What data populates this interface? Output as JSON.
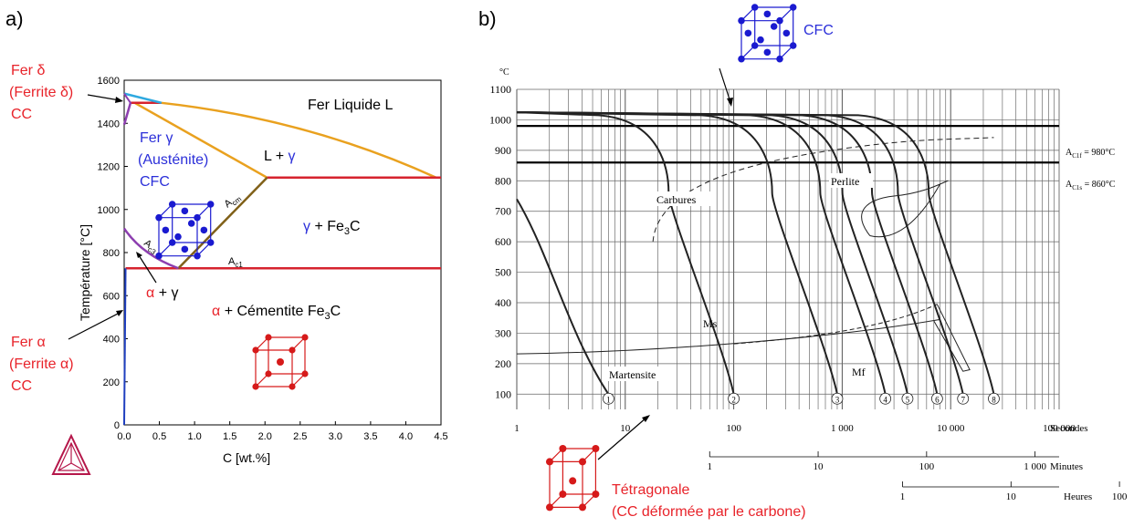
{
  "panel_a": {
    "label": "a)",
    "chart_data": {
      "type": "line",
      "xlabel": "C [wt.%]",
      "ylabel": "Température [°C]",
      "xlim": [
        0.0,
        4.5
      ],
      "ylim": [
        0,
        1600
      ],
      "xticks": [
        "0.0",
        "0.5",
        "1.0",
        "1.5",
        "2.0",
        "2.5",
        "3.0",
        "3.5",
        "4.0",
        "4.5"
      ],
      "yticks": [
        "0",
        "200",
        "400",
        "600",
        "800",
        "1000",
        "1200",
        "1400",
        "1600"
      ],
      "series": [
        {
          "color": "#e9a11f",
          "points": [
            [
              0.15,
              1495
            ],
            [
              2.03,
              1148
            ],
            [
              4.43,
              1148
            ],
            [
              0.53,
              1495
            ],
            [
              2.03,
              1148
            ]
          ]
        },
        {
          "color": "#d6232e",
          "points": [
            [
              2.03,
              1148
            ],
            [
              4.5,
              1148
            ]
          ]
        },
        {
          "color": "#d6232e",
          "points": [
            [
              0.02,
              727
            ],
            [
              4.5,
              727
            ]
          ]
        },
        {
          "color": "#d6232e",
          "points": [
            [
              0.09,
              1495
            ],
            [
              0.53,
              1495
            ]
          ]
        },
        {
          "color": "#806018",
          "points": [
            [
              0.77,
              727
            ],
            [
              2.03,
              1148
            ]
          ]
        },
        {
          "color": "#8d3fb0",
          "points": [
            [
              0.0,
              912
            ],
            [
              0.77,
              727
            ]
          ]
        },
        {
          "color": "#8d3fb0",
          "points": [
            [
              0.0,
              1394
            ],
            [
              0.09,
              1495
            ]
          ]
        },
        {
          "color": "#2ea9e0",
          "points": [
            [
              0.0,
              1538
            ],
            [
              0.53,
              1495
            ]
          ]
        },
        {
          "color": "#1f3fbf",
          "points": [
            [
              0.0,
              0
            ],
            [
              0.02,
              727
            ]
          ]
        }
      ],
      "annotations": [
        {
          "text": "Fer Liquide  L",
          "x": 3.3,
          "y": 1495
        },
        {
          "text": "L + ",
          "greek": "γ",
          "x": 2.2,
          "y": 1255
        },
        {
          "text": "γ",
          "suffix": " + Fe",
          "sub": "3",
          "tail": "C",
          "x": 2.7,
          "y": 945
        },
        {
          "text": "α",
          "suffix": " + γ",
          "x": 0.45,
          "y": 620
        },
        {
          "text": "α",
          "suffix": " + Cémentite Fe",
          "sub": "3",
          "tail": "C",
          "x": 2.3,
          "y": 545
        },
        {
          "text": "A",
          "sub": "cm",
          "x": 1.45,
          "y": 1025
        },
        {
          "text": "A",
          "sub": "c3",
          "x": 0.12,
          "y": 840
        },
        {
          "text": "A",
          "sub": "c1",
          "x": 1.45,
          "y": 760
        }
      ]
    },
    "side_labels": {
      "fer_delta": [
        "Fer δ",
        "(Ferrite δ)",
        "CC"
      ],
      "fer_gamma": [
        "Fer γ",
        "(Austénite)",
        "CFC"
      ],
      "fer_alpha": [
        "Fer α",
        "(Ferrite α)",
        "CC"
      ]
    },
    "colors": {
      "red": "#e8232a",
      "blue": "#2b2fd9",
      "cube_blue": "#1a1ad0",
      "cube_red": "#d61a1a",
      "logo": "#b5174a"
    },
    "icons": [
      "fcc-cube-icon",
      "bcc-cube-icon",
      "thermo-calc-logo-icon"
    ]
  },
  "panel_b": {
    "label": "b)",
    "chart_data": {
      "type": "line",
      "y_unit": "°C",
      "ylim": [
        100,
        1100
      ],
      "xscale": "log",
      "xlim": [
        1,
        100000
      ],
      "yticks": [
        "100",
        "200",
        "300",
        "400",
        "500",
        "600",
        "700",
        "800",
        "900",
        "1000",
        "1100"
      ],
      "x_axes": [
        {
          "unit": "Secondes",
          "ticks": [
            "1",
            "10",
            "100",
            "1 000",
            "10 000",
            "100 000"
          ]
        },
        {
          "unit": "Minutes",
          "ticks": [
            "1",
            "10",
            "100",
            "1 000"
          ]
        },
        {
          "unit": "Heures",
          "ticks": [
            "1",
            "10",
            "100"
          ]
        }
      ],
      "horizontal_lines": [
        {
          "label": "A",
          "sub": "C1f",
          "suffix": " = 980°C",
          "y": 980
        },
        {
          "label": "A",
          "sub": "C1s",
          "suffix": " = 860°C",
          "y": 860
        }
      ],
      "cooling_curves": [
        {
          "id": "1",
          "end_time_s": 7,
          "end_temp": 100
        },
        {
          "id": "2",
          "end_time_s": 100,
          "end_temp": 100
        },
        {
          "id": "3",
          "end_time_s": 900,
          "end_temp": 100
        },
        {
          "id": "4",
          "end_time_s": 2500,
          "end_temp": 100
        },
        {
          "id": "5",
          "end_time_s": 4000,
          "end_temp": 100
        },
        {
          "id": "6",
          "end_time_s": 7500,
          "end_temp": 100
        },
        {
          "id": "7",
          "end_time_s": 13000,
          "end_temp": 100
        },
        {
          "id": "8",
          "end_time_s": 25000,
          "end_temp": 100
        }
      ],
      "regions": [
        "Carbures",
        "Perlite",
        "Ms",
        "Mf",
        "Martensite"
      ]
    },
    "icon_labels": {
      "cfc": "CFC",
      "tetragonale": "Tétragonale",
      "tetragonale_note": "(CC déformée par le carbone)"
    },
    "icons": [
      "fcc-cube-icon",
      "tetragonal-cell-icon"
    ]
  }
}
